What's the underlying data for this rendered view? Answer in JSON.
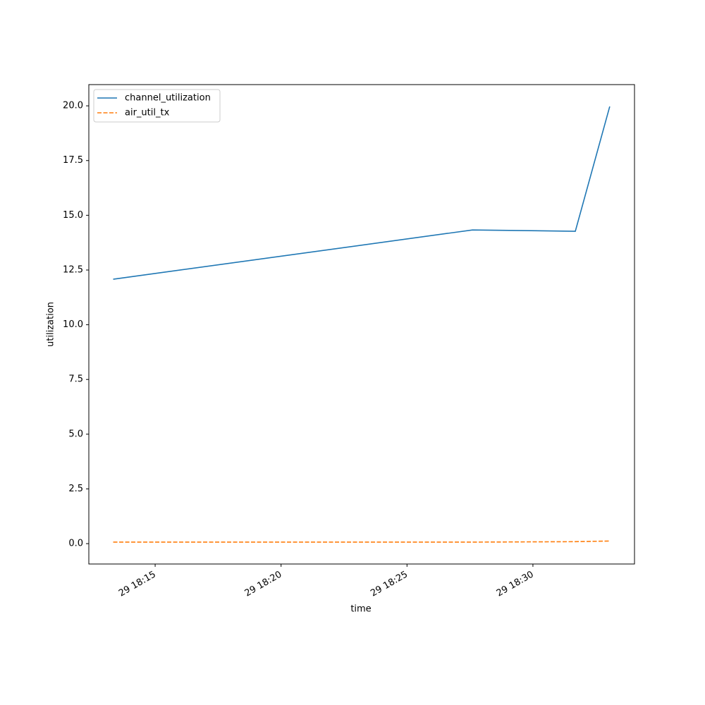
{
  "chart_data": {
    "type": "line",
    "x_label": "time",
    "y_label": "utilization",
    "x": [
      "29 18:13:20",
      "29 18:27:36",
      "29 18:31:41",
      "29 18:33:03"
    ],
    "series": [
      {
        "name": "channel_utilization",
        "color": "#1f77b4",
        "dash": "solid",
        "values": [
          12.08,
          14.33,
          14.27,
          19.97
        ]
      },
      {
        "name": "air_util_tx",
        "color": "#ff7f0e",
        "dash": "dashed",
        "values": [
          0.07,
          0.07,
          0.09,
          0.12
        ]
      }
    ],
    "xlim": [
      "29 18:12:22",
      "29 18:34:02"
    ],
    "xticks": [
      "29 18:15",
      "29 18:20",
      "29 18:25",
      "29 18:30"
    ],
    "ylim": [
      -0.93,
      20.97
    ],
    "yticks": [
      {
        "value": 0,
        "label": "0.0"
      },
      2.5,
      {
        "value": 5,
        "label": "5.0"
      },
      7.5,
      {
        "value": 10,
        "label": "10.0"
      },
      12.5,
      {
        "value": 15,
        "label": "15.0"
      },
      17.5,
      {
        "value": 20,
        "label": "20.0"
      }
    ],
    "legend": "upper left"
  }
}
